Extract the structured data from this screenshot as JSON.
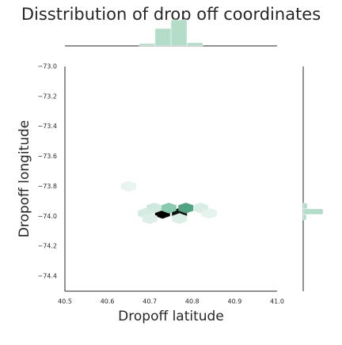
{
  "chart_data": {
    "type": "hexbin",
    "title": "Disstribution of drop off coordinates",
    "xlabel": "Dropoff latitude",
    "ylabel": "Dropoff longitude",
    "xlim": [
      40.5,
      41.0
    ],
    "ylim": [
      -74.5,
      -73.0
    ],
    "xticks": [
      40.5,
      40.6,
      40.7,
      40.8,
      40.9,
      {
        "value": 41.0,
        "label": "41.0"
      }
    ],
    "yticks": [
      {
        "value": -73.0,
        "label": "−73.0"
      },
      {
        "value": -73.2,
        "label": "−73.2"
      },
      {
        "value": -73.4,
        "label": "−73.4"
      },
      {
        "value": -73.6,
        "label": "−73.6"
      },
      {
        "value": -73.8,
        "label": "−73.8"
      },
      {
        "value": -74.0,
        "label": "−74.0"
      },
      {
        "value": -74.2,
        "label": "−74.2"
      },
      {
        "value": -74.4,
        "label": "−74.4"
      }
    ],
    "cmap": [
      "#f4faf7",
      "#5bb48f",
      "#000000"
    ],
    "x": [
      40.73,
      40.77,
      40.785,
      40.745,
      40.71,
      40.69,
      40.82,
      40.7,
      40.77,
      40.65,
      40.84
    ],
    "y": [
      -73.98,
      -73.98,
      -73.945,
      -73.945,
      -73.945,
      -73.98,
      -73.945,
      -74.015,
      -74.015,
      -73.8,
      -73.98
    ],
    "values": [
      100,
      95,
      55,
      35,
      12,
      10,
      9,
      8,
      8,
      4,
      5
    ],
    "hist_color": "#b3dcc9",
    "top_hist": {
      "bins": [
        40.675,
        40.7125,
        40.75,
        40.7875,
        40.825
      ],
      "counts": [
        3,
        22,
        33,
        4
      ]
    },
    "right_hist": {
      "bins": [
        -74.025,
        -73.9875,
        -73.95,
        -73.9125
      ],
      "counts": [
        4,
        25,
        5
      ]
    }
  }
}
